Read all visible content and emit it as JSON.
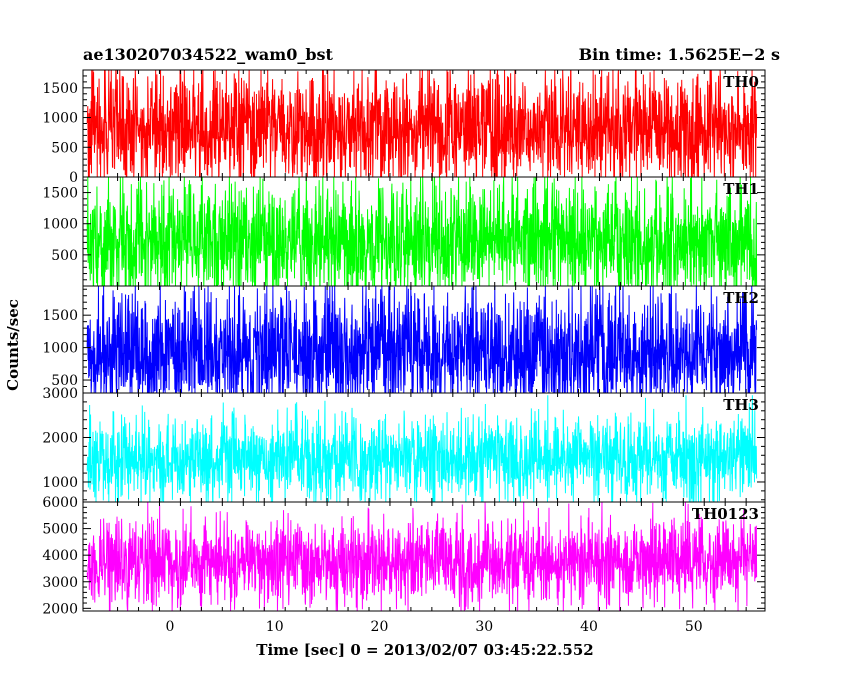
{
  "header": {
    "left_title": "ae130207034522_wam0_bst",
    "right_title": "Bin time: 1.5625E−2 s"
  },
  "axes": {
    "ylabel": "Counts/sec",
    "xlabel": "Time [sec] 0 = 2013/02/07 03:45:22.552",
    "xlim": [
      -8.3,
      56.8
    ],
    "xticks_major": [
      0,
      10,
      20,
      30,
      40,
      50
    ]
  },
  "chart_data": [
    {
      "type": "line",
      "name": "TH0",
      "color": "#ff0000",
      "ylim": [
        0,
        1800
      ],
      "yticks": [
        0,
        500,
        1000,
        1500
      ],
      "x_range": [
        -7.9,
        56.0
      ],
      "baseline": 800,
      "low": 0,
      "high": 1800,
      "spread": 500
    },
    {
      "type": "line",
      "name": "TH1",
      "color": "#00ff00",
      "ylim": [
        0,
        1750
      ],
      "yticks": [
        500,
        1000,
        1500
      ],
      "x_range": [
        -7.9,
        56.0
      ],
      "baseline": 700,
      "low": 0,
      "high": 1750,
      "spread": 480
    },
    {
      "type": "line",
      "name": "TH2",
      "color": "#0000ff",
      "ylim": [
        300,
        1950
      ],
      "yticks": [
        500,
        1000,
        1500
      ],
      "x_range": [
        -7.9,
        56.0
      ],
      "baseline": 900,
      "low": 300,
      "high": 1950,
      "spread": 480
    },
    {
      "type": "line",
      "name": "TH3",
      "color": "#00ffff",
      "ylim": [
        550,
        3000
      ],
      "yticks": [
        1000,
        2000,
        3000
      ],
      "x_range": [
        -7.9,
        56.0
      ],
      "baseline": 1500,
      "low": 550,
      "high": 2950,
      "spread": 500
    },
    {
      "type": "line",
      "name": "TH0123",
      "color": "#ff00ff",
      "ylim": [
        1900,
        6000
      ],
      "yticks": [
        2000,
        3000,
        4000,
        5000,
        6000
      ],
      "x_range": [
        -7.9,
        56.0
      ],
      "baseline": 3700,
      "low": 1900,
      "high": 6000,
      "spread": 800
    }
  ]
}
